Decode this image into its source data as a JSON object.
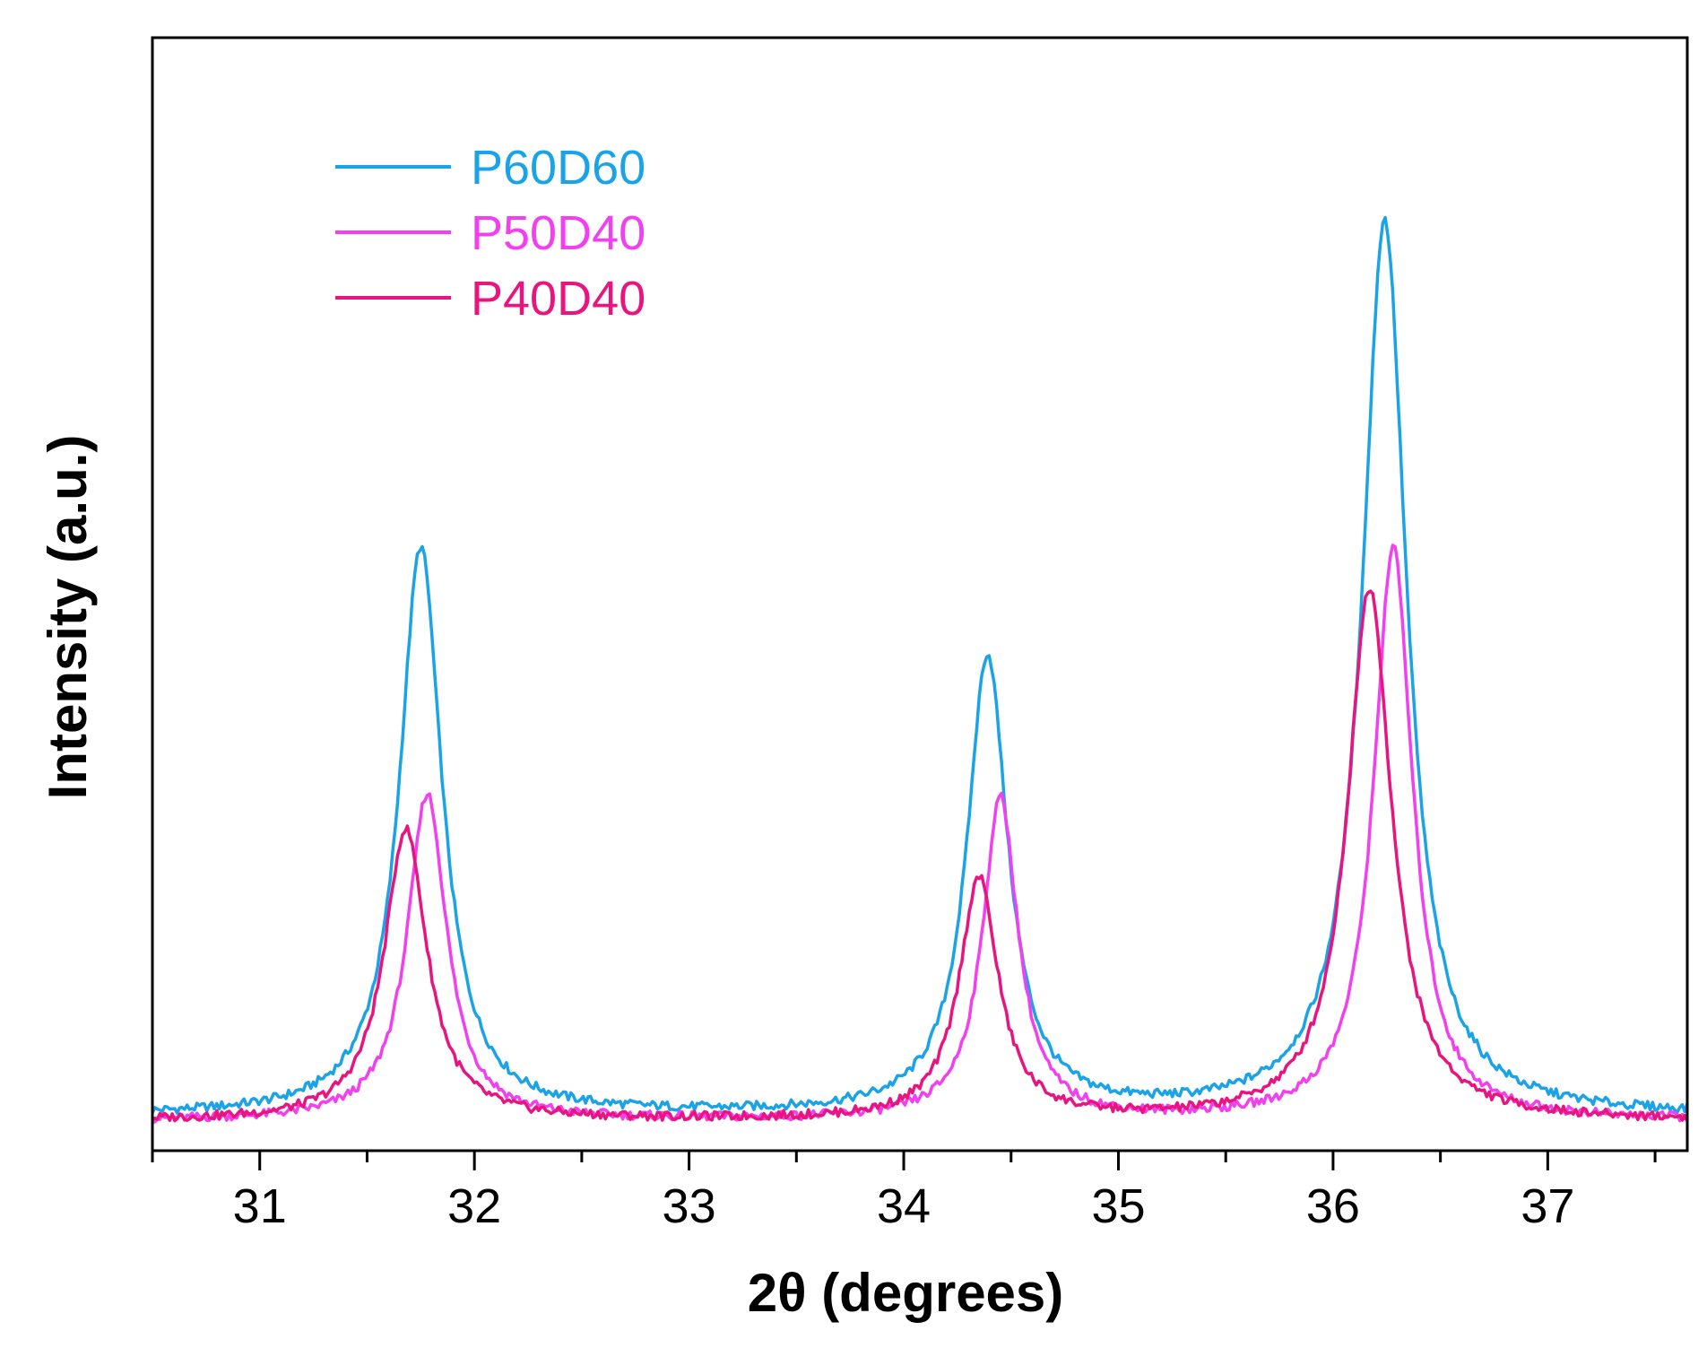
{
  "chart_data": {
    "type": "line",
    "title": "",
    "xlabel": "2θ (degrees)",
    "ylabel": "Intensity (a.u.)",
    "xlim": [
      30.5,
      37.65
    ],
    "ylim": [
      0,
      100
    ],
    "x_ticks": [
      31,
      32,
      33,
      34,
      35,
      36,
      37
    ],
    "x_tick_labels": [
      "31",
      "32",
      "33",
      "34",
      "35",
      "36",
      "37"
    ],
    "legend_position": "top-left",
    "grid": false,
    "series": [
      {
        "name": "P60D60",
        "color": "#1aa3e6",
        "baseline": 1.5,
        "peaks": [
          {
            "center": 31.75,
            "height": 56.5,
            "width": 0.12
          },
          {
            "center": 34.39,
            "height": 45.5,
            "width": 0.115
          },
          {
            "center": 36.24,
            "height": 89.0,
            "width": 0.125
          }
        ],
        "x": [
          30.5,
          31.0,
          31.4,
          31.6,
          31.75,
          31.9,
          32.1,
          32.5,
          33.0,
          33.5,
          33.9,
          34.2,
          34.39,
          34.55,
          34.8,
          35.2,
          35.6,
          35.9,
          36.1,
          36.24,
          36.4,
          36.7,
          37.0,
          37.4,
          37.65
        ],
        "y": [
          1.5,
          2.4,
          5.5,
          30,
          58.2,
          35,
          7.5,
          2.6,
          2.2,
          2.5,
          4.2,
          20,
          47.0,
          30,
          6.5,
          3.1,
          4.0,
          12,
          40,
          90.2,
          42,
          8,
          3,
          2.0,
          1.3
        ]
      },
      {
        "name": "P50D40",
        "color": "#f23ff0",
        "baseline": 1.0,
        "peaks": [
          {
            "center": 31.78,
            "height": 32.5,
            "width": 0.11
          },
          {
            "center": 34.45,
            "height": 32.0,
            "width": 0.1
          },
          {
            "center": 36.28,
            "height": 57.0,
            "width": 0.11
          }
        ],
        "x": [
          30.5,
          31.0,
          31.5,
          31.65,
          31.78,
          31.95,
          32.2,
          32.6,
          33.0,
          33.5,
          34.0,
          34.3,
          34.45,
          34.6,
          34.9,
          35.3,
          35.8,
          36.1,
          36.28,
          36.45,
          36.7,
          37.0,
          37.3,
          37.65
        ],
        "y": [
          0.8,
          1.2,
          4.0,
          20,
          33.2,
          22,
          4.0,
          1.5,
          1.0,
          0.9,
          1.5,
          14,
          32.4,
          18,
          2.0,
          1.2,
          3.0,
          26,
          57.4,
          30,
          5,
          1.8,
          1.2,
          0.7
        ]
      },
      {
        "name": "P40D40",
        "color": "#e8147f",
        "baseline": 1.0,
        "peaks": [
          {
            "center": 31.68,
            "height": 29.0,
            "width": 0.12
          },
          {
            "center": 34.35,
            "height": 24.0,
            "width": 0.11
          },
          {
            "center": 36.17,
            "height": 53.0,
            "width": 0.125
          }
        ],
        "x": [
          30.5,
          31.0,
          31.4,
          31.55,
          31.68,
          31.85,
          32.1,
          32.5,
          33.0,
          33.5,
          33.9,
          34.2,
          34.35,
          34.5,
          34.75,
          35.2,
          35.7,
          36.0,
          36.17,
          36.35,
          36.6,
          37.0,
          37.65
        ],
        "y": [
          1.2,
          2.0,
          7.0,
          20,
          29.6,
          16,
          3.0,
          1.8,
          1.2,
          1.5,
          2.8,
          14,
          24.6,
          14,
          2.4,
          1.4,
          4.5,
          25,
          53.8,
          28,
          4.5,
          1.6,
          1.0
        ]
      }
    ]
  }
}
